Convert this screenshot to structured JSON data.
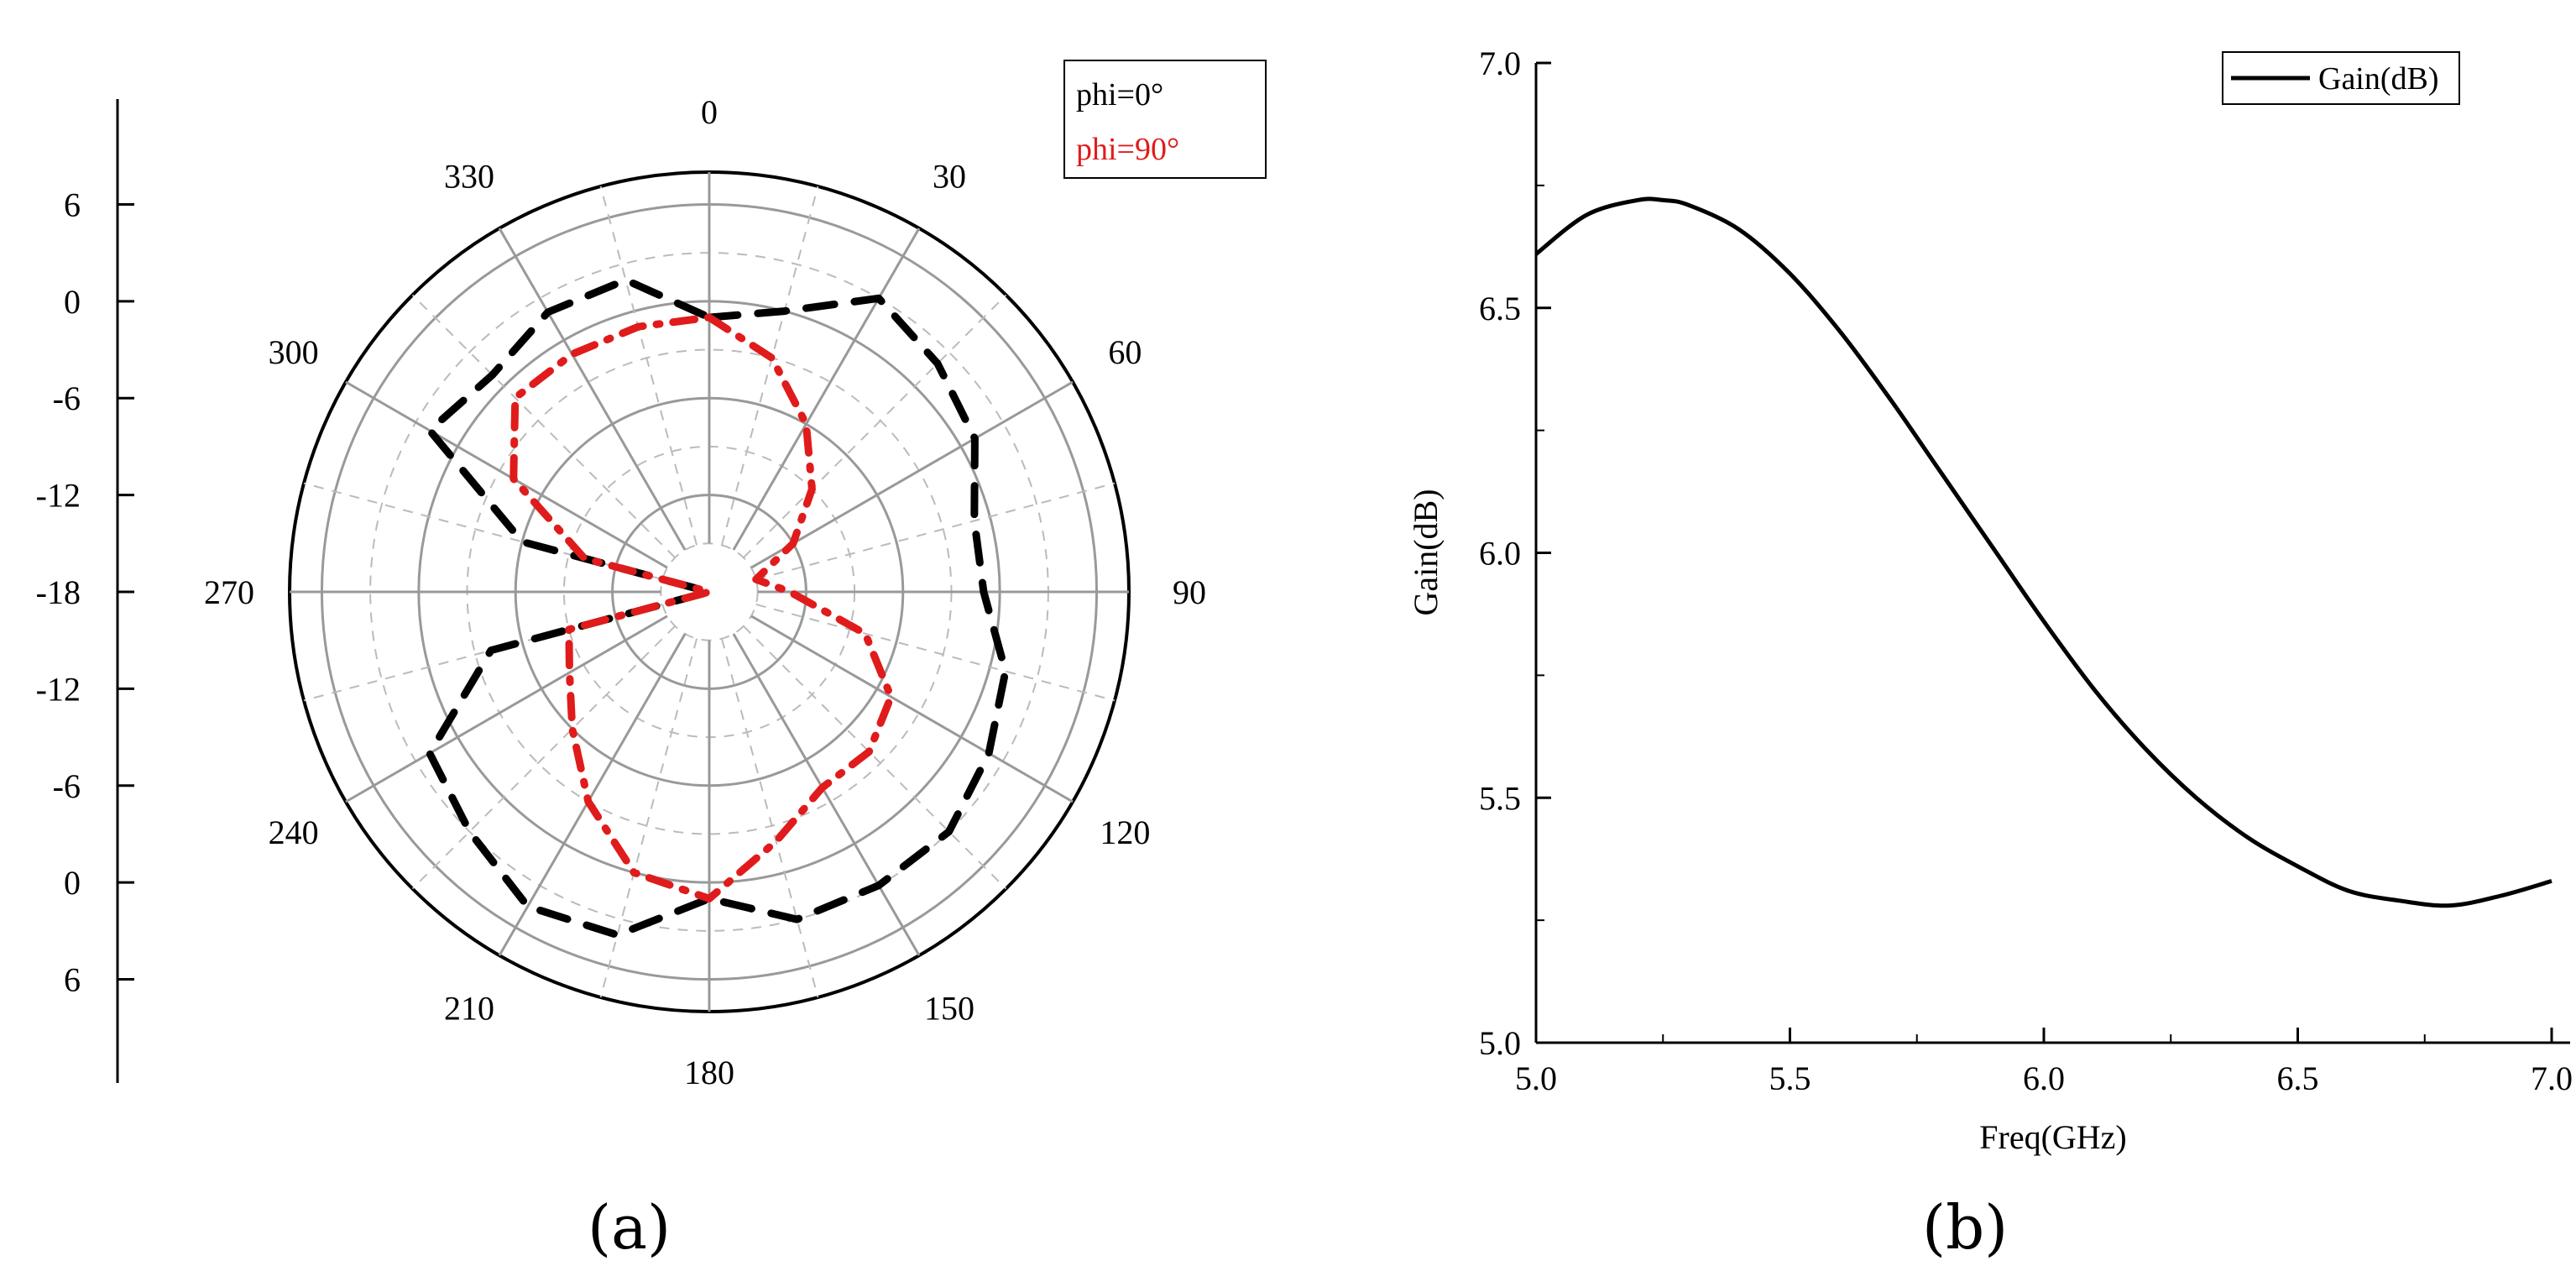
{
  "captions": {
    "a": "(a)",
    "b": "(b)"
  },
  "colors": {
    "series_black": "#000000",
    "series_red": "#e01b1b",
    "grid": "#999999",
    "grid_dashed": "#bbbbbb"
  },
  "chart_data": [
    {
      "type": "polar-line",
      "angular_ticks": [
        "0",
        "30",
        "60",
        "90",
        "120",
        "150",
        "180",
        "210",
        "240",
        "270",
        "300",
        "330"
      ],
      "angular_tick_values": [
        0,
        30,
        60,
        90,
        120,
        150,
        180,
        210,
        240,
        270,
        300,
        330
      ],
      "radial_ticks_upper": [
        "6",
        "0",
        "-6",
        "-12",
        "-18"
      ],
      "radial_ticks_lower": [
        "-12",
        "-6",
        "0",
        "6"
      ],
      "radial_range": [
        -18,
        8
      ],
      "grid": true,
      "legend_position": "top-right",
      "series": [
        {
          "name": "phi=0°",
          "style": "dashed",
          "theta": [
            0,
            15,
            30,
            45,
            60,
            75,
            90,
            105,
            120,
            135,
            150,
            165,
            180,
            195,
            210,
            225,
            240,
            255,
            270,
            285,
            300,
            315,
            330,
            345
          ],
          "r": [
            -1,
            0,
            3,
            2,
            1,
            -1,
            -1,
            1,
            2,
            3,
            3,
            3,
            1,
            4,
            4.5,
            3,
            2,
            -4,
            -18,
            -6,
            2,
            1,
            2,
            2
          ]
        },
        {
          "name": "phi=90°",
          "style": "dashdot",
          "theta": [
            0,
            15,
            30,
            45,
            60,
            75,
            90,
            105,
            120,
            135,
            150,
            165,
            180,
            195,
            210,
            225,
            240,
            255,
            270,
            285,
            300,
            315,
            330,
            345
          ],
          "r": [
            -1,
            -3,
            -6,
            -9,
            -12,
            -15,
            -13,
            -8,
            -5,
            -4,
            -4,
            -2,
            1,
            0,
            -3,
            -6,
            -8,
            -9,
            -18,
            -10,
            -4,
            -1,
            -1,
            -1
          ]
        }
      ]
    },
    {
      "type": "line",
      "xlabel": "Freq(GHz)",
      "ylabel": "Gain(dB)",
      "xlim": [
        5.0,
        7.0
      ],
      "ylim": [
        5.0,
        7.0
      ],
      "x_ticks": [
        "5.0",
        "5.5",
        "6.0",
        "6.5",
        "7.0"
      ],
      "y_ticks": [
        "5.0",
        "5.5",
        "6.0",
        "6.5",
        "7.0"
      ],
      "x_tick_values": [
        5.0,
        5.5,
        6.0,
        6.5,
        7.0
      ],
      "y_tick_values": [
        5.0,
        5.5,
        6.0,
        6.5,
        7.0
      ],
      "legend_position": "top-right",
      "grid": false,
      "series": [
        {
          "name": "Gain(dB)",
          "x": [
            5.0,
            5.1,
            5.2,
            5.25,
            5.3,
            5.4,
            5.5,
            5.6,
            5.7,
            5.8,
            5.9,
            6.0,
            6.1,
            6.2,
            6.3,
            6.4,
            6.5,
            6.6,
            6.7,
            6.8,
            6.9,
            7.0
          ],
          "values": [
            6.61,
            6.69,
            6.72,
            6.72,
            6.71,
            6.66,
            6.57,
            6.45,
            6.31,
            6.16,
            6.01,
            5.86,
            5.72,
            5.6,
            5.5,
            5.42,
            5.36,
            5.31,
            5.29,
            5.28,
            5.3,
            5.33
          ]
        }
      ]
    }
  ]
}
